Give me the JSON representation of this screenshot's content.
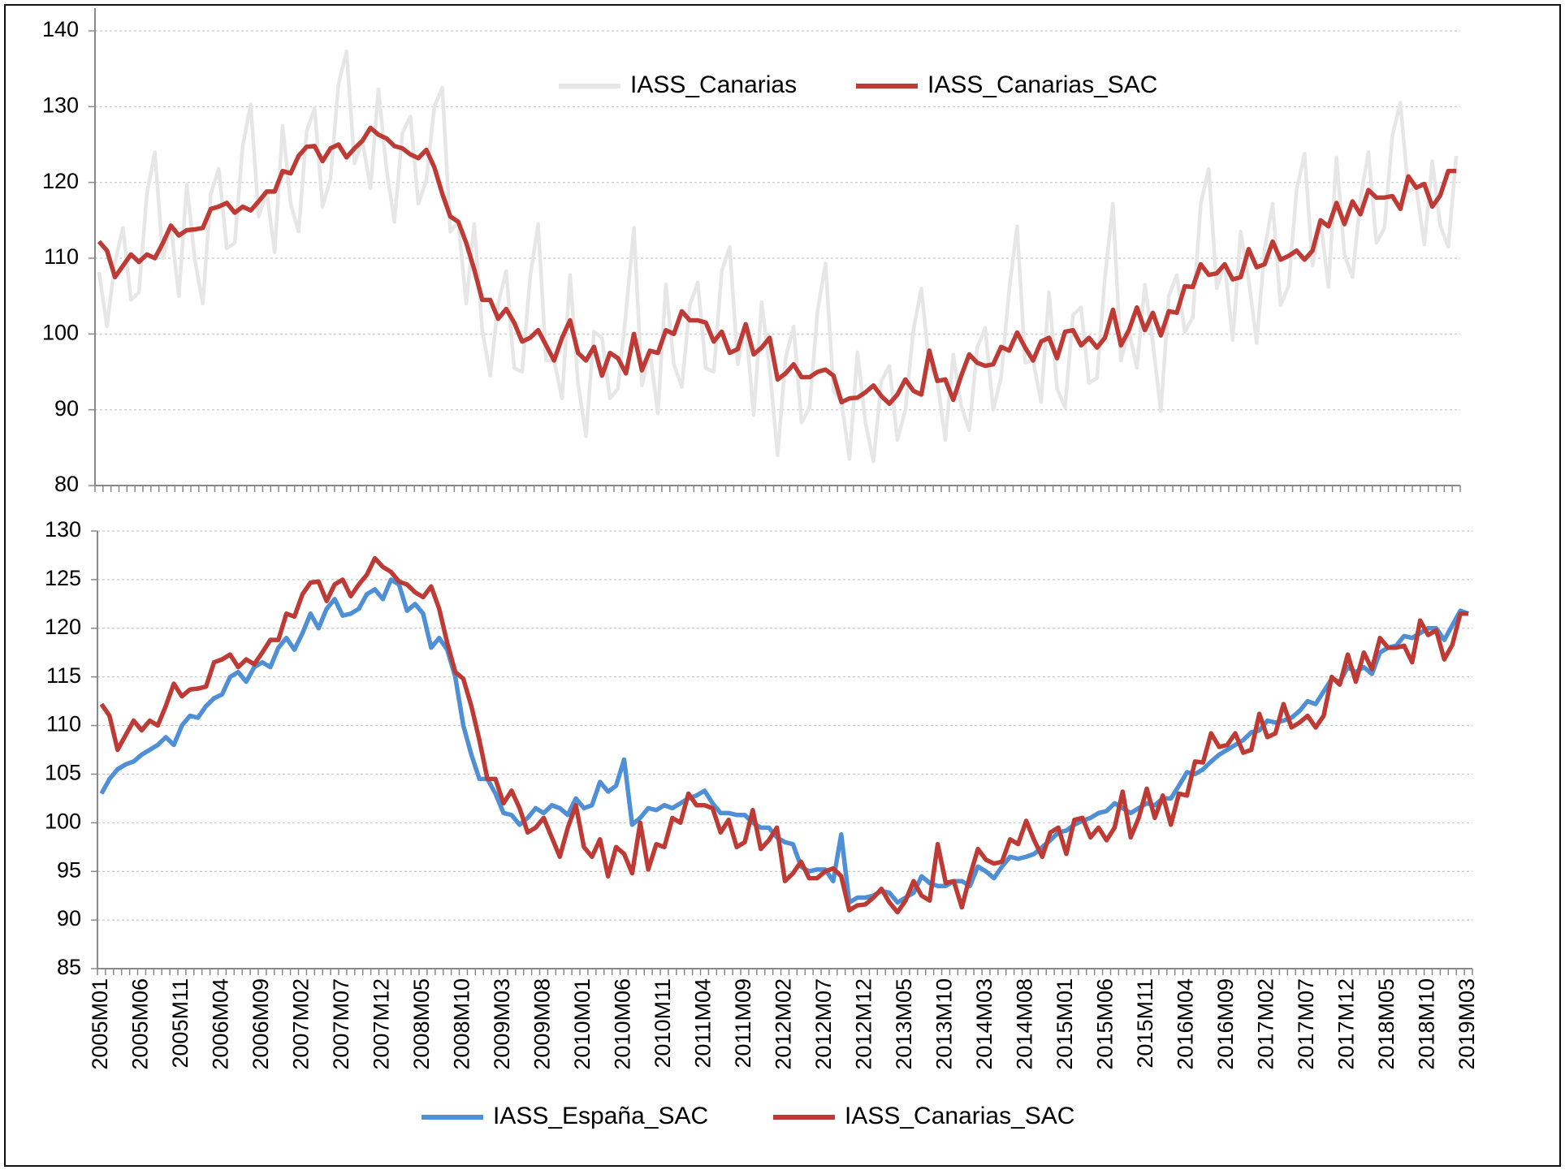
{
  "chart_data": [
    {
      "type": "line",
      "ylim": [
        80,
        143
      ],
      "yticks": [
        80,
        90,
        100,
        110,
        120,
        130,
        140
      ],
      "grid": true,
      "legend": "top",
      "series": [
        {
          "name": "IASS_Canarias",
          "color": "#e6e6e6",
          "values": [
            108.2,
            101,
            109.5,
            114,
            104.5,
            105.5,
            118.5,
            124,
            110,
            114.3,
            105,
            119.7,
            109.8,
            104,
            118.5,
            121.8,
            111.3,
            112,
            124.8,
            130.3,
            115.5,
            118.8,
            110.8,
            127.5,
            117.2,
            113.5,
            126.7,
            129.8,
            116.8,
            120.5,
            133,
            137.3,
            122.5,
            125.5,
            119.2,
            132.3,
            121.8,
            114.8,
            126.5,
            128.7,
            117.2,
            120.3,
            130,
            132.5,
            113.5,
            114.8,
            104,
            114.5,
            100.5,
            94.5,
            104,
            108.3,
            95.5,
            95,
            107.5,
            114.5,
            96.5,
            96.5,
            91.5,
            107.8,
            93.5,
            86.5,
            100.3,
            99.5,
            91.5,
            92.8,
            102.8,
            114,
            93.2,
            97.8,
            89.5,
            106.5,
            96,
            93,
            103.8,
            106.8,
            95.5,
            95,
            108.3,
            111.5,
            96,
            101.3,
            89.3,
            104.2,
            95.5,
            84,
            96.8,
            101,
            88.3,
            90.3,
            103,
            109.3,
            92.5,
            91,
            83.5,
            97.6,
            88.3,
            83.2,
            93.8,
            95.8,
            86,
            90,
            100.5,
            106,
            95.8,
            93.8,
            86,
            97.3,
            90.5,
            87.3,
            98.2,
            100.8,
            90,
            94.3,
            105.8,
            114.2,
            96.2,
            96.5,
            91,
            105.5,
            92.8,
            90.3,
            102.5,
            103.5,
            93.5,
            94.2,
            107.5,
            117.2,
            96.5,
            100.5,
            95.5,
            106.5,
            98.8,
            89.8,
            105,
            107.8,
            100.3,
            102.2,
            117.2,
            121.8,
            106,
            109.2,
            99.2,
            113.5,
            107.2,
            98.8,
            111.2,
            117.2,
            103.8,
            106.3,
            119,
            123.8,
            109,
            115,
            106.2,
            123.3,
            110.5,
            107.5,
            117.8,
            124,
            112,
            114,
            126.2,
            130.5,
            118.8,
            119.3,
            111.8,
            122.8,
            114.3,
            111.5,
            123.5
          ]
        },
        {
          "name": "IASS_Canarias_SAC",
          "color": "#be3a34",
          "values": [
            112.2,
            111,
            107.5,
            109,
            110.5,
            109.5,
            110.5,
            110,
            112,
            114.3,
            113,
            113.7,
            113.8,
            114,
            116.5,
            116.8,
            117.3,
            116,
            116.8,
            116.3,
            117.5,
            118.8,
            118.8,
            121.5,
            121.2,
            123.5,
            124.7,
            124.8,
            122.8,
            124.5,
            125,
            123.3,
            124.5,
            125.5,
            127.2,
            126.3,
            125.8,
            124.8,
            124.5,
            123.7,
            123.2,
            124.3,
            122,
            118.5,
            115.5,
            114.8,
            112,
            108.5,
            104.5,
            104.5,
            102,
            103.3,
            101.5,
            99,
            99.5,
            100.5,
            98.5,
            96.5,
            99.5,
            101.8,
            97.5,
            96.5,
            98.3,
            94.5,
            97.5,
            96.8,
            94.8,
            100,
            95.2,
            97.8,
            97.5,
            100.5,
            100,
            103,
            101.8,
            101.8,
            101.5,
            99,
            100.3,
            97.5,
            98,
            101.3,
            97.3,
            98.2,
            99.5,
            94,
            94.8,
            96,
            94.3,
            94.3,
            95,
            95.3,
            94.5,
            91,
            91.5,
            91.6,
            92.3,
            93.2,
            91.8,
            90.8,
            92,
            94,
            92.5,
            92,
            97.8,
            93.8,
            94,
            91.3,
            94.5,
            97.3,
            96.2,
            95.8,
            96,
            98.3,
            97.8,
            100.2,
            98.2,
            96.5,
            99,
            99.5,
            96.8,
            100.3,
            100.5,
            98.5,
            99.5,
            98.2,
            99.5,
            103.2,
            98.5,
            100.5,
            103.5,
            100.5,
            102.8,
            99.8,
            103,
            102.8,
            106.3,
            106.2,
            109.2,
            107.8,
            108,
            109.2,
            107.2,
            107.5,
            111.2,
            108.8,
            109.2,
            112.2,
            109.8,
            110.3,
            111,
            109.8,
            111,
            115,
            114.2,
            117.3,
            114.5,
            117.5,
            115.8,
            119,
            118,
            118,
            118.2,
            116.5,
            120.8,
            119.3,
            119.8,
            116.8,
            118.3,
            121.5,
            121.5
          ]
        }
      ]
    },
    {
      "type": "line",
      "ylim": [
        85,
        130
      ],
      "yticks": [
        85,
        90,
        95,
        100,
        105,
        110,
        115,
        120,
        125,
        130
      ],
      "grid": true,
      "legend": "bottom",
      "categories": [
        "2005M01",
        null,
        null,
        null,
        null,
        "2005M06",
        null,
        null,
        null,
        null,
        "2005M11",
        null,
        null,
        null,
        null,
        "2006M04",
        null,
        null,
        null,
        null,
        "2006M09",
        null,
        null,
        null,
        null,
        "2007M02",
        null,
        null,
        null,
        null,
        "2007M07",
        null,
        null,
        null,
        null,
        "2007M12",
        null,
        null,
        null,
        null,
        "2008M05",
        null,
        null,
        null,
        null,
        "2008M10",
        null,
        null,
        null,
        null,
        "2009M03",
        null,
        null,
        null,
        null,
        "2009M08",
        null,
        null,
        null,
        null,
        "2010M01",
        null,
        null,
        null,
        null,
        "2010M06",
        null,
        null,
        null,
        null,
        "2010M11",
        null,
        null,
        null,
        null,
        "2011M04",
        null,
        null,
        null,
        null,
        "2011M09",
        null,
        null,
        null,
        null,
        "2012M02",
        null,
        null,
        null,
        null,
        "2012M07",
        null,
        null,
        null,
        null,
        "2012M12",
        null,
        null,
        null,
        null,
        "2013M05",
        null,
        null,
        null,
        null,
        "2013M10",
        null,
        null,
        null,
        null,
        "2014M03",
        null,
        null,
        null,
        null,
        "2014M08",
        null,
        null,
        null,
        null,
        "2015M01",
        null,
        null,
        null,
        null,
        "2015M06",
        null,
        null,
        null,
        null,
        "2015M11",
        null,
        null,
        null,
        null,
        "2016M04",
        null,
        null,
        null,
        null,
        "2016M09",
        null,
        null,
        null,
        null,
        "2017M02",
        null,
        null,
        null,
        null,
        "2017M07",
        null,
        null,
        null,
        null,
        "2017M12",
        null,
        null,
        null,
        null,
        "2018M05",
        null,
        null,
        null,
        null,
        "2018M10",
        null,
        null,
        null,
        null,
        "2019M03"
      ],
      "series": [
        {
          "name": "IASS_España_SAC",
          "color": "#4f8fd6",
          "values": [
            103,
            104.5,
            105.5,
            106,
            106.3,
            107,
            107.5,
            108,
            108.8,
            108,
            110,
            111,
            110.8,
            112,
            112.8,
            113.2,
            115,
            115.5,
            114.5,
            116,
            116.5,
            116,
            118,
            119,
            117.8,
            119.5,
            121.5,
            120,
            122,
            123,
            121.3,
            121.5,
            122,
            123.5,
            124,
            123,
            125,
            124.5,
            121.8,
            122.5,
            121.5,
            118,
            119,
            117.8,
            115,
            110,
            107,
            104.5,
            104.5,
            103,
            101,
            100.8,
            99.8,
            100.5,
            101.5,
            101,
            101.8,
            101.5,
            100.8,
            102.5,
            101.5,
            101.8,
            104.2,
            103.2,
            103.8,
            106.5,
            99.8,
            100.5,
            101.5,
            101.3,
            101.8,
            101.5,
            102,
            102.5,
            102.8,
            103.3,
            102,
            101,
            101,
            100.8,
            100.8,
            100,
            99.5,
            99.5,
            98.5,
            98,
            97.8,
            95.5,
            95,
            95.2,
            95.2,
            94,
            98.8,
            91.8,
            92.3,
            92.3,
            92.5,
            93,
            92.8,
            91.8,
            92.3,
            92.8,
            94.5,
            93.8,
            93.5,
            93.5,
            94,
            94,
            93.5,
            95.5,
            95,
            94.3,
            95.5,
            96.5,
            96.3,
            96.5,
            96.8,
            97.5,
            98.2,
            99,
            99.2,
            99.8,
            100.2,
            100.5,
            101,
            101.2,
            102,
            101.5,
            101,
            101.5,
            102,
            101.8,
            102.5,
            102.5,
            103.8,
            105.2,
            105,
            105.5,
            106.3,
            107,
            107.5,
            108,
            108.5,
            109.3,
            109.5,
            110.5,
            110.3,
            110.5,
            110.8,
            111.5,
            112.5,
            112.2,
            113.5,
            114.8,
            114.5,
            116,
            115.5,
            116,
            115.3,
            117.5,
            118,
            118.2,
            119.2,
            119,
            119.5,
            120,
            120,
            118.8,
            120.3,
            121.8,
            121.5
          ]
        },
        {
          "name": "IASS_Canarias_SAC",
          "color": "#be3a34",
          "values": [
            112.2,
            111,
            107.5,
            109,
            110.5,
            109.5,
            110.5,
            110,
            112,
            114.3,
            113,
            113.7,
            113.8,
            114,
            116.5,
            116.8,
            117.3,
            116,
            116.8,
            116.3,
            117.5,
            118.8,
            118.8,
            121.5,
            121.2,
            123.5,
            124.7,
            124.8,
            122.8,
            124.5,
            125,
            123.3,
            124.5,
            125.5,
            127.2,
            126.3,
            125.8,
            124.8,
            124.5,
            123.7,
            123.2,
            124.3,
            122,
            118.5,
            115.5,
            114.8,
            112,
            108.5,
            104.5,
            104.5,
            102,
            103.3,
            101.5,
            99,
            99.5,
            100.5,
            98.5,
            96.5,
            99.5,
            101.8,
            97.5,
            96.5,
            98.3,
            94.5,
            97.5,
            96.8,
            94.8,
            100,
            95.2,
            97.8,
            97.5,
            100.5,
            100,
            103,
            101.8,
            101.8,
            101.5,
            99,
            100.3,
            97.5,
            98,
            101.3,
            97.3,
            98.2,
            99.5,
            94,
            94.8,
            96,
            94.3,
            94.3,
            95,
            95.3,
            94.5,
            91,
            91.5,
            91.6,
            92.3,
            93.2,
            91.8,
            90.8,
            92,
            94,
            92.5,
            92,
            97.8,
            93.8,
            94,
            91.3,
            94.5,
            97.3,
            96.2,
            95.8,
            96,
            98.3,
            97.8,
            100.2,
            98.2,
            96.5,
            99,
            99.5,
            96.8,
            100.3,
            100.5,
            98.5,
            99.5,
            98.2,
            99.5,
            103.2,
            98.5,
            100.5,
            103.5,
            100.5,
            102.8,
            99.8,
            103,
            102.8,
            106.3,
            106.2,
            109.2,
            107.8,
            108,
            109.2,
            107.2,
            107.5,
            111.2,
            108.8,
            109.2,
            112.2,
            109.8,
            110.3,
            111,
            109.8,
            111,
            115,
            114.2,
            117.3,
            114.5,
            117.5,
            115.8,
            119,
            118,
            118,
            118.2,
            116.5,
            120.8,
            119.3,
            119.8,
            116.8,
            118.3,
            121.5,
            121.5
          ]
        }
      ]
    }
  ]
}
